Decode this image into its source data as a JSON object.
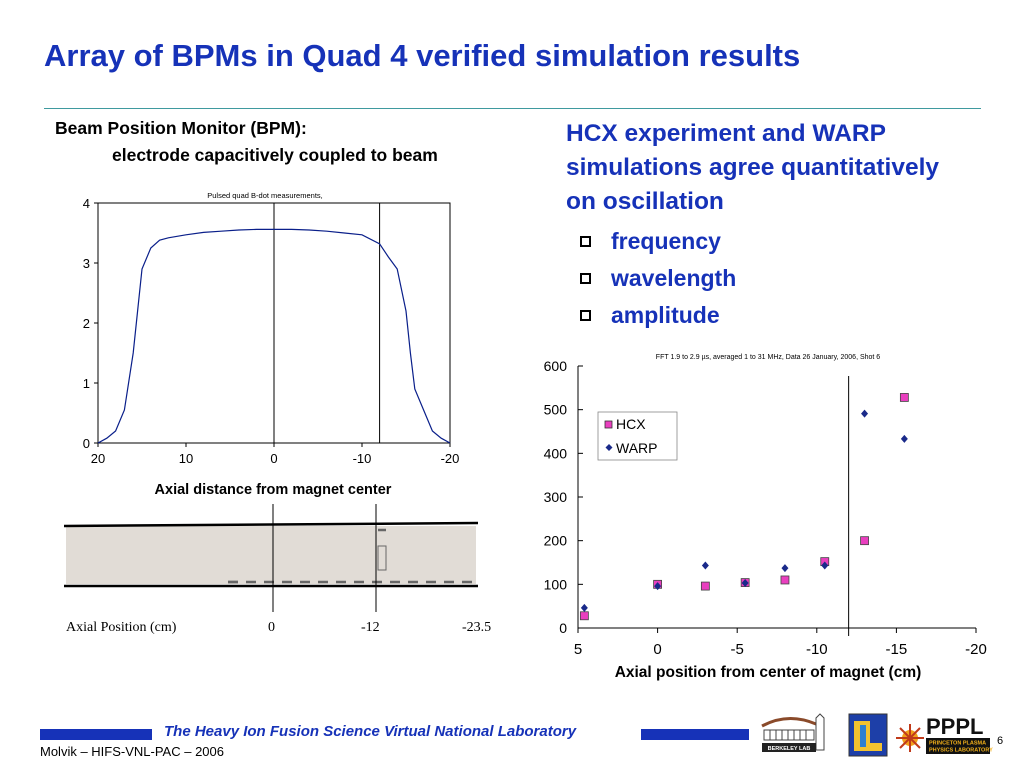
{
  "title": "Array of BPMs in Quad 4 verified simulation results",
  "left": {
    "heading_line1": "Beam Position Monitor (BPM):",
    "heading_line2": "electrode capacitively coupled to beam",
    "chart_title": "Pulsed quad B-dot measurements,",
    "xlabel": "Axial distance from magnet center",
    "bottom_axis_label": "Axial Position (cm)",
    "bottom_ticks": [
      "0",
      "-12",
      "-23.5"
    ]
  },
  "right": {
    "heading_lines": [
      "HCX experiment and WARP",
      "simulations agree quantitatively",
      "on oscillation"
    ],
    "bullets": [
      "frequency",
      "wavelength",
      "amplitude"
    ],
    "chart_title": "FFT 1.9 to 2.9 µs, averaged 1 to 31 MHz, Data 26 January, 2006, Shot 6",
    "xlabel": "Axial position from center of magnet (cm)"
  },
  "chart_data": [
    {
      "type": "line",
      "title": "Pulsed quad B-dot measurements,",
      "xlabel": "Axial distance from magnet center",
      "ylabel": "",
      "xlim": [
        20,
        -20
      ],
      "ylim": [
        0,
        4
      ],
      "xticks": [
        20,
        10,
        0,
        -10,
        -20
      ],
      "yticks": [
        0,
        1,
        2,
        3,
        4
      ],
      "vertical_lines": [
        0,
        -12
      ],
      "series": [
        {
          "x": [
            20,
            19,
            18,
            17,
            16,
            15.5,
            15,
            14,
            13,
            12,
            10,
            8,
            6,
            4,
            2,
            0,
            -2,
            -4,
            -6,
            -8,
            -10,
            -12,
            -13,
            -14,
            -15,
            -15.5,
            -16,
            -17,
            -18,
            -19,
            -20
          ],
          "y": [
            0,
            0.08,
            0.2,
            0.55,
            1.5,
            2.2,
            2.9,
            3.25,
            3.38,
            3.42,
            3.47,
            3.51,
            3.53,
            3.55,
            3.56,
            3.56,
            3.56,
            3.55,
            3.53,
            3.5,
            3.47,
            3.32,
            3.1,
            2.9,
            2.2,
            1.5,
            0.9,
            0.55,
            0.2,
            0.08,
            0
          ]
        }
      ]
    },
    {
      "type": "scatter",
      "title": "FFT 1.9 to 2.9 µs, averaged 1 to 31 MHz, Data 26 January, 2006, Shot 6",
      "xlabel": "Axial position from center of magnet (cm)",
      "ylabel": "",
      "xlim": [
        5,
        -20
      ],
      "ylim": [
        0,
        600
      ],
      "xticks": [
        5,
        0,
        -5,
        -10,
        -15,
        -20
      ],
      "yticks": [
        0,
        100,
        200,
        300,
        400,
        500,
        600
      ],
      "vertical_lines": [
        -12
      ],
      "legend": "top-left",
      "series": [
        {
          "name": "HCX",
          "color": "#e93fbf",
          "marker": "square",
          "x": [
            4.6,
            0,
            -3,
            -5.5,
            -8,
            -10.5,
            -13,
            -15.5
          ],
          "y": [
            28,
            100,
            96,
            104,
            110,
            152,
            200,
            528
          ]
        },
        {
          "name": "WARP",
          "color": "#1a2a8a",
          "marker": "diamond",
          "x": [
            4.6,
            0,
            -3,
            -5.5,
            -8,
            -10.5,
            -13,
            -15.5
          ],
          "y": [
            46,
            96,
            143,
            103,
            137,
            143,
            491,
            433
          ]
        }
      ]
    }
  ],
  "footer": {
    "banner": "The Heavy Ion Fusion Science Virtual National Laboratory",
    "credit": "Molvik – HIFS-VNL-PAC – 2006",
    "page": "6",
    "logo_berkeley_text": "BERKELEY LAB",
    "logo_pppl_text": "PPPL",
    "logo_pppl_sub1": "PRINCETON PLASMA",
    "logo_pppl_sub2": "PHYSICS LABORATORY"
  }
}
